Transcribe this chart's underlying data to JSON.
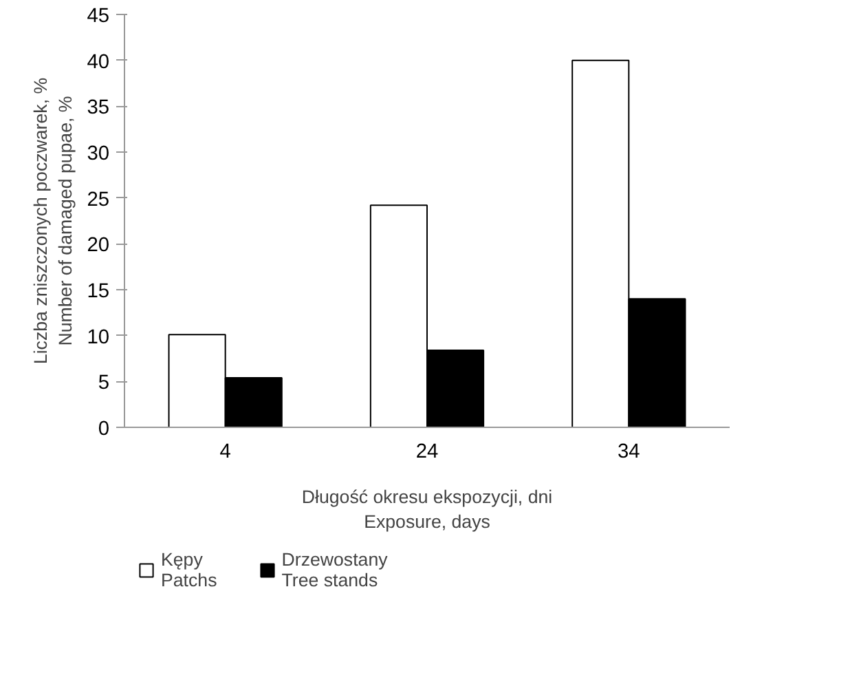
{
  "chart_data": {
    "type": "bar",
    "xlabel": "Długość okresu ekspozycji, dni\nExposure, days",
    "ylabel": "Liczba zniszczonych poczwarek, %\nNumber of damaged pupae, %",
    "categories": [
      "4",
      "24",
      "34"
    ],
    "series": [
      {
        "name": "Kępy\nPatchs",
        "color": "#ffffff",
        "values": [
          10.1,
          24.2,
          40
        ]
      },
      {
        "name": "Drzewostany\nTree stands",
        "color": "#000000",
        "values": [
          5.4,
          8.4,
          14
        ]
      }
    ],
    "ylim": [
      0,
      45
    ],
    "yticks": [
      0,
      5,
      10,
      15,
      20,
      25,
      30,
      35,
      40,
      45
    ],
    "grid": false,
    "legend": "bottom left"
  }
}
